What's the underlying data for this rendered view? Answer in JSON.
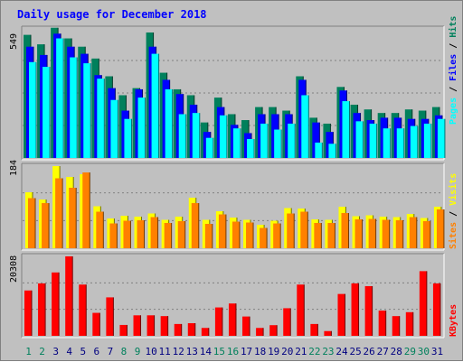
{
  "chart_data": [
    {
      "type": "bar",
      "title": "Daily usage for December 2018",
      "panel": "top",
      "y_max_label": "549",
      "ylim": [
        0,
        549
      ],
      "categories": [
        "1",
        "2",
        "3",
        "4",
        "5",
        "6",
        "7",
        "8",
        "9",
        "10",
        "11",
        "12",
        "13",
        "14",
        "15",
        "16",
        "17",
        "18",
        "19",
        "20",
        "21",
        "22",
        "23",
        "24",
        "25",
        "26",
        "27",
        "28",
        "29",
        "30",
        "31"
      ],
      "weekend_days": [
        "1",
        "2",
        "8",
        "9",
        "15",
        "16",
        "22",
        "23",
        "29",
        "30"
      ],
      "series": [
        {
          "name": "Hits",
          "color": "#00805c",
          "values": [
            520,
            480,
            550,
            505,
            470,
            420,
            345,
            265,
            295,
            530,
            360,
            290,
            265,
            150,
            255,
            185,
            160,
            215,
            215,
            200,
            345,
            170,
            145,
            300,
            225,
            205,
            190,
            190,
            205,
            200,
            215
          ]
        },
        {
          "name": "Files",
          "color": "#0000ff",
          "values": [
            470,
            435,
            525,
            470,
            440,
            350,
            295,
            200,
            290,
            470,
            330,
            270,
            225,
            110,
            215,
            140,
            105,
            185,
            185,
            185,
            330,
            150,
            110,
            285,
            190,
            160,
            170,
            170,
            165,
            165,
            180
          ]
        },
        {
          "name": "Pages",
          "color": "#00ffff",
          "values": [
            405,
            385,
            505,
            425,
            400,
            335,
            245,
            165,
            255,
            440,
            290,
            185,
            190,
            85,
            180,
            125,
            80,
            145,
            120,
            145,
            265,
            65,
            60,
            240,
            155,
            145,
            125,
            125,
            135,
            145,
            165
          ]
        }
      ],
      "right_label": [
        "Pages",
        "Files",
        "Hits"
      ]
    },
    {
      "type": "bar",
      "panel": "middle",
      "y_max_label": "184",
      "ylim": [
        0,
        184
      ],
      "categories": [
        "1",
        "2",
        "3",
        "4",
        "5",
        "6",
        "7",
        "8",
        "9",
        "10",
        "11",
        "12",
        "13",
        "14",
        "15",
        "16",
        "17",
        "18",
        "19",
        "20",
        "21",
        "22",
        "23",
        "24",
        "25",
        "26",
        "27",
        "28",
        "29",
        "30",
        "31"
      ],
      "series": [
        {
          "name": "Visits",
          "color": "#ffff00",
          "values": [
            124,
            108,
            182,
            158,
            164,
            93,
            66,
            72,
            70,
            77,
            63,
            70,
            112,
            63,
            82,
            68,
            63,
            52,
            61,
            89,
            88,
            64,
            63,
            92,
            71,
            73,
            70,
            69,
            76,
            67,
            92
          ]
        },
        {
          "name": "Sites",
          "color": "#ff8000",
          "values": [
            111,
            100,
            155,
            134,
            168,
            81,
            55,
            61,
            62,
            69,
            56,
            60,
            100,
            54,
            75,
            59,
            57,
            45,
            55,
            77,
            81,
            56,
            56,
            78,
            64,
            65,
            63,
            62,
            69,
            60,
            86
          ]
        }
      ],
      "right_label": [
        "Sites",
        "Visits"
      ]
    },
    {
      "type": "bar",
      "panel": "bottom",
      "y_max_label": "20308",
      "ylim": [
        0,
        20308
      ],
      "categories": [
        "1",
        "2",
        "3",
        "4",
        "5",
        "6",
        "7",
        "8",
        "9",
        "10",
        "11",
        "12",
        "13",
        "14",
        "15",
        "16",
        "17",
        "18",
        "19",
        "20",
        "21",
        "22",
        "23",
        "24",
        "25",
        "26",
        "27",
        "28",
        "29",
        "30",
        "31"
      ],
      "series": [
        {
          "name": "KBytes",
          "color": "#ff0000",
          "values": [
            11590,
            13404,
            16200,
            20308,
            13101,
            5871,
            9828,
            2781,
            5239,
            5239,
            5038,
            3023,
            3225,
            2015,
            7254,
            8264,
            4937,
            2015,
            2721,
            7052,
            13101,
            3023,
            1209,
            10700,
            13404,
            12697,
            6448,
            5038,
            6045,
            16528,
            13404
          ]
        }
      ],
      "right_label": [
        "KBytes"
      ]
    }
  ]
}
